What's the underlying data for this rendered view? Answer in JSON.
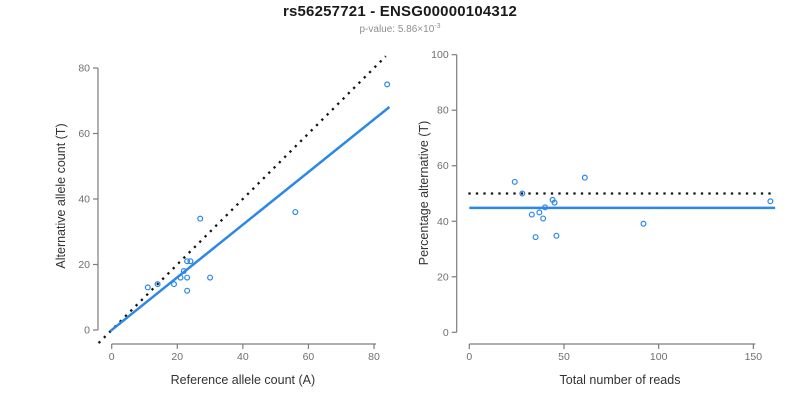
{
  "header": {
    "title": "rs56257721 - ENSG00000104312",
    "subtitle_base": "p-value: 5.86×10",
    "subtitle_exponent": "-3"
  },
  "colors": {
    "accent_blue": "#2b87e8",
    "dotted_black": "#141414",
    "axis_gray": "#7d7d7d",
    "tick_label_gray": "#6f6f6f",
    "axis_title_dark": "#333333"
  },
  "chart_data": [
    {
      "type": "scatter",
      "panel": "left",
      "xlabel": "Reference allele count (A)",
      "ylabel": "Alternative allele count (T)",
      "xticks": [
        0,
        20,
        40,
        60,
        80
      ],
      "yticks": [
        0,
        20,
        40,
        60,
        80
      ],
      "xlim": [
        -4,
        85
      ],
      "ylim": [
        -4,
        84
      ],
      "grid": false,
      "legend": null,
      "points": [
        [
          11,
          13
        ],
        [
          14,
          14
        ],
        [
          19,
          14
        ],
        [
          21,
          16
        ],
        [
          23,
          16
        ],
        [
          30,
          16
        ],
        [
          22,
          18
        ],
        [
          23,
          21
        ],
        [
          24,
          21
        ],
        [
          23,
          12
        ],
        [
          27,
          34
        ],
        [
          56,
          36
        ],
        [
          84,
          75
        ]
      ],
      "lines": [
        {
          "name": "identity-line",
          "style": "dotted",
          "color": "black",
          "from": [
            -4,
            -4
          ],
          "to": [
            83.6,
            83.6
          ]
        },
        {
          "name": "fit-line",
          "style": "solid",
          "color": "blue",
          "from": [
            -0.5,
            -0.4
          ],
          "to": [
            84.7,
            68.1
          ]
        }
      ]
    },
    {
      "type": "scatter",
      "panel": "right",
      "xlabel": "Total number of reads",
      "ylabel": "Percentage alternative (T)",
      "xticks": [
        0,
        50,
        100,
        150
      ],
      "yticks": [
        0,
        20,
        40,
        60,
        80,
        100
      ],
      "xlim": [
        -7,
        162
      ],
      "ylim": [
        -4,
        104
      ],
      "grid": false,
      "legend": null,
      "points": [
        [
          24,
          54.2
        ],
        [
          28,
          50.0
        ],
        [
          33,
          42.4
        ],
        [
          37,
          43.2
        ],
        [
          39,
          41.0
        ],
        [
          46,
          34.8
        ],
        [
          40,
          45.0
        ],
        [
          44,
          47.7
        ],
        [
          45,
          46.7
        ],
        [
          35,
          34.3
        ],
        [
          61,
          55.7
        ],
        [
          92,
          39.1
        ],
        [
          159,
          47.2
        ]
      ],
      "lines": [
        {
          "name": "expected-50pct-line",
          "style": "dotted",
          "color": "black",
          "from": [
            -0.5,
            50
          ],
          "to": [
            161.5,
            50
          ]
        },
        {
          "name": "mean-pct-line",
          "style": "solid",
          "color": "blue",
          "from": [
            0,
            44.8
          ],
          "to": [
            161.5,
            44.8
          ]
        }
      ]
    }
  ]
}
